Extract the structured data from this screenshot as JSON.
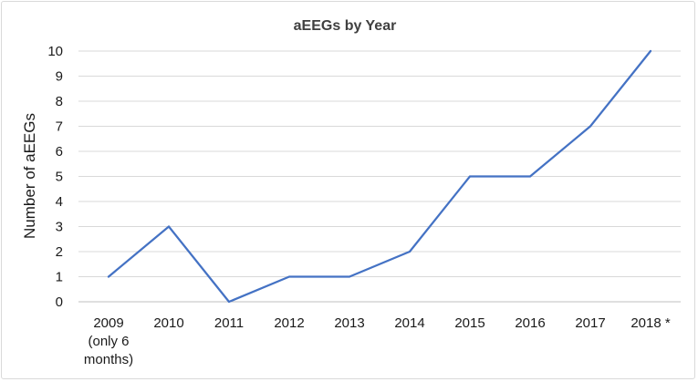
{
  "chart_data": {
    "type": "line",
    "title": "aEEGs by Year",
    "xlabel": "",
    "ylabel": "Number of aEEGs",
    "categories": [
      [
        "2009",
        "(only 6",
        "months)"
      ],
      [
        "2010"
      ],
      [
        "2011"
      ],
      [
        "2012"
      ],
      [
        "2013"
      ],
      [
        "2014"
      ],
      [
        "2015"
      ],
      [
        "2016"
      ],
      [
        "2017"
      ],
      [
        "2018 *"
      ]
    ],
    "series": [
      {
        "values": [
          1,
          3,
          0,
          1,
          1,
          2,
          5,
          5,
          7,
          10
        ]
      }
    ],
    "ylim": [
      0,
      10
    ],
    "yticks": [
      "0",
      "1",
      "2",
      "3",
      "4",
      "5",
      "6",
      "7",
      "8",
      "9",
      "10"
    ],
    "grid": true,
    "legend": "none",
    "colors": {
      "line": "#4472c4",
      "grid": "#d9d9d9",
      "axis": "#bfbfbf"
    }
  }
}
